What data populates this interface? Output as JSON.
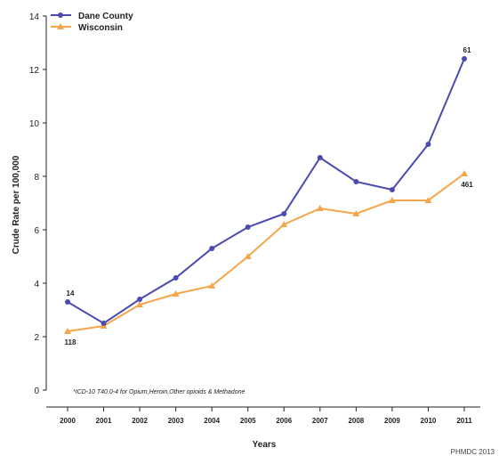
{
  "chart_data": {
    "type": "line",
    "xlabel": "Years",
    "ylabel": "Crude Rate per 100,000",
    "ylim": [
      0,
      14
    ],
    "yticks": [
      0,
      2,
      4,
      6,
      8,
      10,
      12,
      14
    ],
    "categories": [
      "2000",
      "2001",
      "2002",
      "2003",
      "2004",
      "2005",
      "2006",
      "2007",
      "2008",
      "2009",
      "2010",
      "2011"
    ],
    "legend_position": "top-left",
    "grid": false,
    "series": [
      {
        "name": "Dane County",
        "color": "#4a4ab0",
        "marker": "circle",
        "values": [
          3.3,
          2.5,
          3.4,
          4.2,
          5.3,
          6.1,
          6.6,
          8.7,
          7.8,
          7.5,
          9.2,
          12.4
        ]
      },
      {
        "name": "Wisconsin",
        "color": "#f5a54a",
        "marker": "triangle",
        "values": [
          2.2,
          2.4,
          3.2,
          3.6,
          3.9,
          5.0,
          6.2,
          6.8,
          6.6,
          7.1,
          7.1,
          8.1
        ]
      }
    ],
    "annotations": [
      {
        "series": 0,
        "index": 0,
        "text": "14",
        "position": "above"
      },
      {
        "series": 1,
        "index": 0,
        "text": "118",
        "position": "below"
      },
      {
        "series": 0,
        "index": 11,
        "text": "61",
        "position": "above"
      },
      {
        "series": 1,
        "index": 11,
        "text": "461",
        "position": "below"
      }
    ],
    "footnote": "*ICD-10 T40.0-4 for Opium,Heroin,Other opioids & Methadone",
    "credit": "PHMDC 2013"
  }
}
